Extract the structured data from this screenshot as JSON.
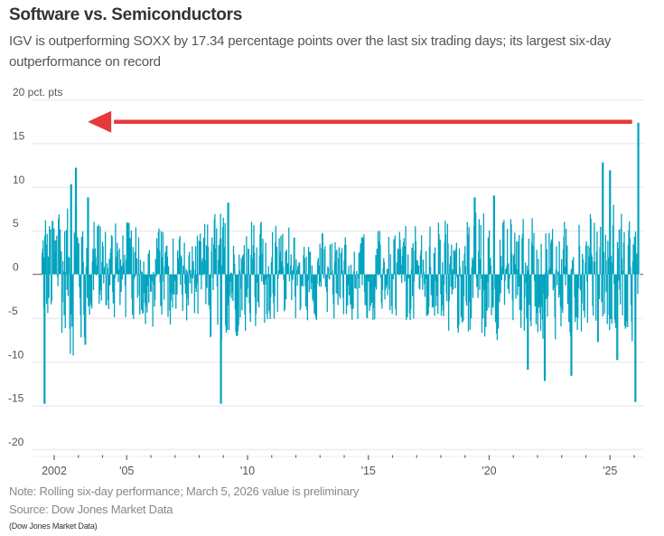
{
  "header": {
    "title": "Software vs. Semiconductors",
    "subtitle": "IGV is outperforming SOXX by 17.34 percentage points over the last six trading days; its largest six-day outperformance on record"
  },
  "footer": {
    "note": "Note: Rolling six-day performance; March 5, 2026 value is preliminary",
    "source": "Source: Dow Jones Market Data",
    "credit": "(Dow Jones Market Data)"
  },
  "colors": {
    "series": "#00a3bf",
    "arrow": "#e8383a",
    "grid": "#ececec",
    "zero_line": "#888888",
    "axis_text": "#555555"
  },
  "chart_data": {
    "type": "bar",
    "title": "Software vs. Semiconductors",
    "subtitle": "IGV is outperforming SOXX by 17.34 percentage points over the last six trading days; its largest six-day outperformance on record",
    "xlabel": "",
    "ylabel": "pct. pts",
    "ylim": [
      -20,
      20
    ],
    "xlim": [
      2001.5,
      2026.2
    ],
    "grid": true,
    "y_ticks": [
      {
        "value": 20,
        "label": "20 pct. pts"
      },
      {
        "value": 15,
        "label": "15"
      },
      {
        "value": 10,
        "label": "10"
      },
      {
        "value": 5,
        "label": "5"
      },
      {
        "value": 0,
        "label": "0"
      },
      {
        "value": -5,
        "label": "-5"
      },
      {
        "value": -10,
        "label": "-10"
      },
      {
        "value": -15,
        "label": "-15"
      },
      {
        "value": -20,
        "label": "-20"
      }
    ],
    "x_ticks": [
      {
        "value": 2002,
        "label": "2002"
      },
      {
        "value": 2005,
        "label": "'05"
      },
      {
        "value": 2010,
        "label": "'10"
      },
      {
        "value": 2015,
        "label": "'15"
      },
      {
        "value": 2020,
        "label": "'20"
      },
      {
        "value": 2025,
        "label": "'25"
      }
    ],
    "x_minor_ticks": [
      2003,
      2004,
      2006,
      2007,
      2008,
      2009,
      2011,
      2012,
      2013,
      2014,
      2016,
      2017,
      2018,
      2019,
      2021,
      2022,
      2023,
      2024,
      2026
    ],
    "series": [
      {
        "name": "IGV minus SOXX, rolling six-day performance (pct. pts)",
        "volatility_envelope": [
          {
            "year": 2001.5,
            "high": 9,
            "low": -10
          },
          {
            "year": 2002.0,
            "high": 8,
            "low": -10
          },
          {
            "year": 2002.7,
            "high": 10,
            "low": -10
          },
          {
            "year": 2003.5,
            "high": 7,
            "low": -8
          },
          {
            "year": 2004.5,
            "high": 6,
            "low": -6
          },
          {
            "year": 2006.0,
            "high": 5,
            "low": -6
          },
          {
            "year": 2007.5,
            "high": 5,
            "low": -5
          },
          {
            "year": 2008.8,
            "high": 7,
            "low": -8
          },
          {
            "year": 2010.0,
            "high": 6,
            "low": -6
          },
          {
            "year": 2012.0,
            "high": 5,
            "low": -5
          },
          {
            "year": 2014.0,
            "high": 4,
            "low": -5
          },
          {
            "year": 2016.0,
            "high": 5,
            "low": -5
          },
          {
            "year": 2018.0,
            "high": 6,
            "low": -6
          },
          {
            "year": 2020.0,
            "high": 7,
            "low": -7
          },
          {
            "year": 2022.0,
            "high": 6,
            "low": -8
          },
          {
            "year": 2024.0,
            "high": 7,
            "low": -7
          },
          {
            "year": 2025.3,
            "high": 8,
            "low": -8
          },
          {
            "year": 2026.2,
            "high": 4,
            "low": -8
          }
        ],
        "notable_points": [
          {
            "year": 2001.6,
            "value": -14.8
          },
          {
            "year": 2002.9,
            "value": 12.2
          },
          {
            "year": 2002.7,
            "value": 10.3
          },
          {
            "year": 2003.4,
            "value": 8.8
          },
          {
            "year": 2008.9,
            "value": -14.8
          },
          {
            "year": 2009.2,
            "value": 8.2
          },
          {
            "year": 2019.4,
            "value": 8.8
          },
          {
            "year": 2020.2,
            "value": 9.0
          },
          {
            "year": 2021.6,
            "value": -10.9
          },
          {
            "year": 2022.3,
            "value": -12.2
          },
          {
            "year": 2023.4,
            "value": -11.6
          },
          {
            "year": 2024.7,
            "value": 12.8
          },
          {
            "year": 2025.0,
            "value": 11.9
          },
          {
            "year": 2025.3,
            "value": -9.8
          },
          {
            "year": 2026.05,
            "value": -14.6
          },
          {
            "year": 2026.17,
            "value": 17.34
          }
        ]
      }
    ],
    "annotations": [
      {
        "type": "arrow",
        "direction": "left",
        "at_value": 17.34,
        "from_year": 2026.1,
        "to_year": 2003.5
      }
    ]
  }
}
